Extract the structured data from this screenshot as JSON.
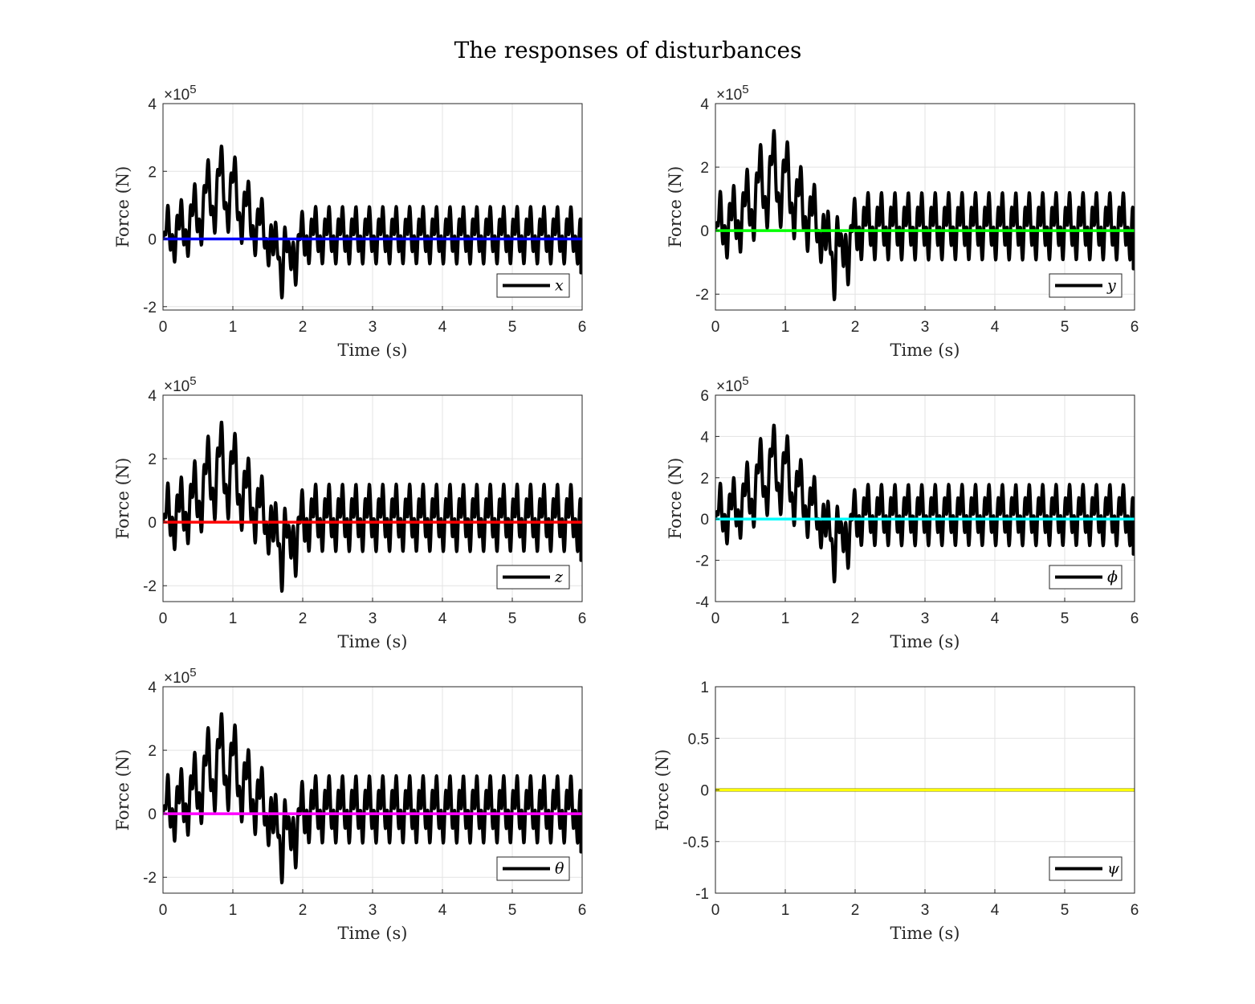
{
  "figure": {
    "title": "The responses of disturbances"
  },
  "chart_data": [
    {
      "type": "line",
      "id": "x",
      "xlabel": "Time (s)",
      "ylabel": "Force (N)",
      "xlim": [
        0,
        6
      ],
      "ylim": [
        -210000,
        400000
      ],
      "y_exponent_label": "×10^5",
      "x_ticks": [
        0,
        1,
        2,
        3,
        4,
        5,
        6
      ],
      "x_tick_labels": [
        "0",
        "1",
        "2",
        "3",
        "4",
        "5",
        "6"
      ],
      "y_ticks": [
        -200000,
        0,
        200000,
        400000
      ],
      "y_tick_labels": [
        "-2",
        "0",
        "2",
        "4"
      ],
      "grid": true,
      "legend_position": "bottom-right",
      "series": [
        {
          "name": "x",
          "color": "#000000",
          "kind": "oscillating disturbance",
          "amplitude": 100000,
          "envelope_peak": 295000,
          "min": -215000,
          "final": -100000
        },
        {
          "color": "#0000ff",
          "kind": "constant",
          "value": 0
        }
      ]
    },
    {
      "type": "line",
      "id": "y",
      "xlabel": "Time (s)",
      "ylabel": "Force (N)",
      "xlim": [
        0,
        6
      ],
      "ylim": [
        -250000,
        400000
      ],
      "y_exponent_label": "×10^5",
      "x_ticks": [
        0,
        1,
        2,
        3,
        4,
        5,
        6
      ],
      "x_tick_labels": [
        "0",
        "1",
        "2",
        "3",
        "4",
        "5",
        "6"
      ],
      "y_ticks": [
        -200000,
        0,
        200000,
        400000
      ],
      "y_tick_labels": [
        "-2",
        "0",
        "2",
        "4"
      ],
      "grid": true,
      "legend_position": "bottom-right",
      "series": [
        {
          "name": "y",
          "color": "#000000",
          "kind": "oscillating disturbance",
          "amplitude": 125000,
          "envelope_peak": 340000,
          "min": -250000,
          "final": -120000
        },
        {
          "color": "#00ff00",
          "kind": "constant",
          "value": 0
        }
      ]
    },
    {
      "type": "line",
      "id": "z",
      "xlabel": "Time (s)",
      "ylabel": "Force (N)",
      "xlim": [
        0,
        6
      ],
      "ylim": [
        -250000,
        400000
      ],
      "y_exponent_label": "×10^5",
      "x_ticks": [
        0,
        1,
        2,
        3,
        4,
        5,
        6
      ],
      "x_tick_labels": [
        "0",
        "1",
        "2",
        "3",
        "4",
        "5",
        "6"
      ],
      "y_ticks": [
        -200000,
        0,
        200000,
        400000
      ],
      "y_tick_labels": [
        "-2",
        "0",
        "2",
        "4"
      ],
      "grid": true,
      "legend_position": "bottom-right",
      "series": [
        {
          "name": "z",
          "color": "#000000",
          "kind": "oscillating disturbance",
          "amplitude": 125000,
          "envelope_peak": 340000,
          "min": -250000,
          "final": -120000
        },
        {
          "color": "#ff0000",
          "kind": "constant",
          "value": 0
        }
      ]
    },
    {
      "type": "line",
      "id": "phi",
      "xlabel": "Time (s)",
      "ylabel": "Force (N)",
      "xlim": [
        0,
        6
      ],
      "ylim": [
        -400000,
        600000
      ],
      "y_exponent_label": "×10^5",
      "x_ticks": [
        0,
        1,
        2,
        3,
        4,
        5,
        6
      ],
      "x_tick_labels": [
        "0",
        "1",
        "2",
        "3",
        "4",
        "5",
        "6"
      ],
      "y_ticks": [
        -400000,
        -200000,
        0,
        200000,
        400000,
        600000
      ],
      "y_tick_labels": [
        "-4",
        "-2",
        "0",
        "2",
        "4",
        "6"
      ],
      "grid": true,
      "legend_position": "bottom-right",
      "series": [
        {
          "name": "ϕ",
          "color": "#000000",
          "kind": "oscillating disturbance",
          "amplitude": 175000,
          "envelope_peak": 490000,
          "min": -360000,
          "final": -170000
        },
        {
          "color": "#00ffff",
          "kind": "constant",
          "value": 0
        }
      ]
    },
    {
      "type": "line",
      "id": "theta",
      "xlabel": "Time (s)",
      "ylabel": "Force (N)",
      "xlim": [
        0,
        6
      ],
      "ylim": [
        -250000,
        400000
      ],
      "y_exponent_label": "×10^5",
      "x_ticks": [
        0,
        1,
        2,
        3,
        4,
        5,
        6
      ],
      "x_tick_labels": [
        "0",
        "1",
        "2",
        "3",
        "4",
        "5",
        "6"
      ],
      "y_ticks": [
        -200000,
        0,
        200000,
        400000
      ],
      "y_tick_labels": [
        "-2",
        "0",
        "2",
        "4"
      ],
      "grid": true,
      "legend_position": "bottom-right",
      "series": [
        {
          "name": "θ",
          "color": "#000000",
          "kind": "oscillating disturbance",
          "amplitude": 125000,
          "envelope_peak": 340000,
          "min": -250000,
          "final": -120000
        },
        {
          "color": "#ff00ff",
          "kind": "constant",
          "value": 0
        }
      ]
    },
    {
      "type": "line",
      "id": "psi",
      "xlabel": "Time (s)",
      "ylabel": "Force (N)",
      "xlim": [
        0,
        6
      ],
      "ylim": [
        -1,
        1
      ],
      "y_exponent_label": "",
      "x_ticks": [
        0,
        1,
        2,
        3,
        4,
        5,
        6
      ],
      "x_tick_labels": [
        "0",
        "1",
        "2",
        "3",
        "4",
        "5",
        "6"
      ],
      "y_ticks": [
        -1,
        -0.5,
        0,
        0.5,
        1
      ],
      "y_tick_labels": [
        "-1",
        "-0.5",
        "0",
        "0.5",
        "1"
      ],
      "grid": true,
      "legend_position": "bottom-right",
      "series": [
        {
          "name": "ψ",
          "color": "#000000",
          "kind": "constant",
          "value": 0
        },
        {
          "color": "#ffff00",
          "kind": "constant",
          "value": 0
        }
      ]
    }
  ]
}
